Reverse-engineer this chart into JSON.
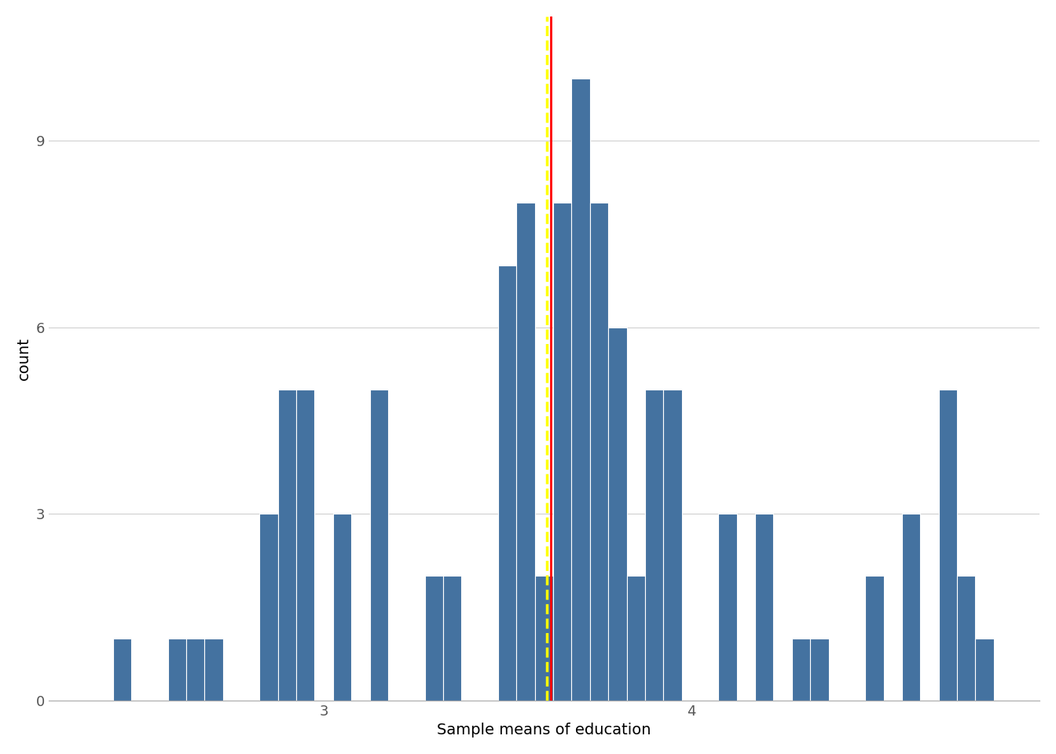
{
  "bars": [
    [
      2.45,
      1
    ],
    [
      2.6,
      1
    ],
    [
      2.65,
      1
    ],
    [
      2.7,
      1
    ],
    [
      2.85,
      3
    ],
    [
      2.9,
      5
    ],
    [
      2.95,
      5
    ],
    [
      3.05,
      3
    ],
    [
      3.15,
      5
    ],
    [
      3.3,
      2
    ],
    [
      3.35,
      2
    ],
    [
      3.5,
      7
    ],
    [
      3.55,
      8
    ],
    [
      3.6,
      2
    ],
    [
      3.65,
      8
    ],
    [
      3.7,
      10
    ],
    [
      3.75,
      8
    ],
    [
      3.8,
      6
    ],
    [
      3.85,
      2
    ],
    [
      3.9,
      5
    ],
    [
      3.95,
      5
    ],
    [
      4.1,
      3
    ],
    [
      4.2,
      3
    ],
    [
      4.3,
      1
    ],
    [
      4.35,
      1
    ],
    [
      4.5,
      2
    ],
    [
      4.6,
      3
    ],
    [
      4.7,
      5
    ],
    [
      4.75,
      2
    ],
    [
      4.8,
      1
    ]
  ],
  "bin_width": 0.05,
  "bar_color": "#4472a0",
  "bar_edgecolor": "white",
  "vline_red_x": 3.618,
  "vline_yellow_x": 3.608,
  "xlabel": "Sample means of education",
  "ylabel": "count",
  "yticks": [
    0,
    3,
    6,
    9
  ],
  "xticks": [
    3,
    4
  ],
  "xlim": [
    2.25,
    4.95
  ],
  "ylim": [
    0,
    11.0
  ],
  "axis_label_fontsize": 14,
  "tick_fontsize": 13,
  "grid_color": "#d0d0d0",
  "grid_linewidth": 0.8,
  "tick_color": "#555555"
}
